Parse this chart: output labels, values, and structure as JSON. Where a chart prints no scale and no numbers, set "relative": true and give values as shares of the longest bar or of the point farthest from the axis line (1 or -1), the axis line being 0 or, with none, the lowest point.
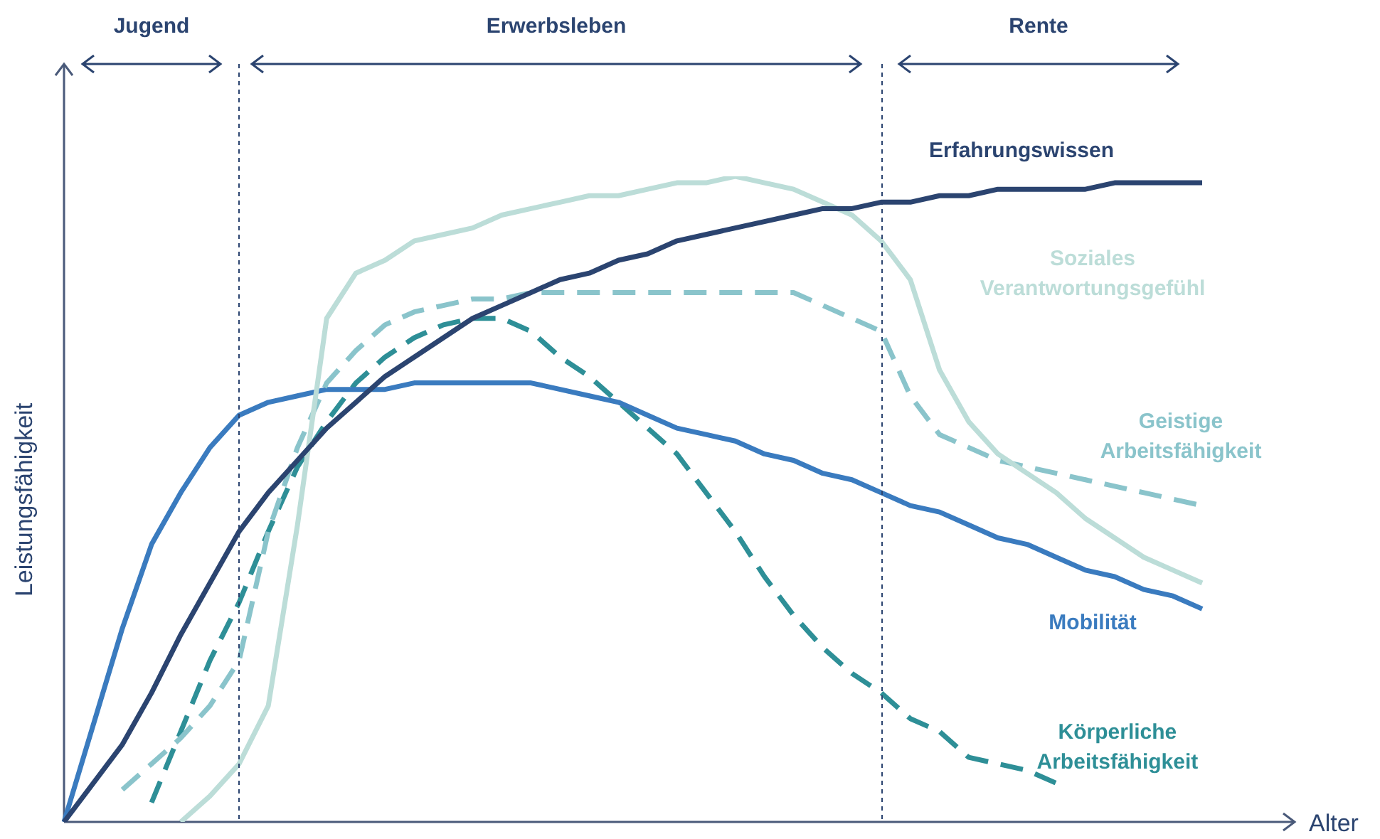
{
  "chart_data": {
    "type": "line",
    "relative": true,
    "xlabel": "Alter",
    "ylabel": "Leistungsfähigkeit",
    "categories": [
      null,
      null,
      null,
      null,
      null,
      null,
      null,
      null,
      null,
      null,
      null,
      null,
      null,
      null,
      null,
      null,
      null,
      null,
      null,
      null,
      null,
      null,
      null,
      null,
      null,
      null,
      null,
      null,
      null,
      null,
      null,
      null,
      null,
      null,
      null,
      null,
      null,
      null,
      null,
      null
    ],
    "tick_labels": false,
    "grid": false,
    "legend": false,
    "marker": "none",
    "annotations": [
      "Jugend",
      "Erwerbsleben",
      "Rente"
    ],
    "series": [
      {
        "name": "Erfahrungswissen",
        "color": "#2b4470",
        "line_style": "solid",
        "values": [
          0,
          0.06,
          0.12,
          0.2,
          0.29,
          0.37,
          0.45,
          0.51,
          0.56,
          0.61,
          0.65,
          0.69,
          0.72,
          0.75,
          0.78,
          0.8,
          0.82,
          0.84,
          0.85,
          0.87,
          0.88,
          0.9,
          0.91,
          0.92,
          0.93,
          0.94,
          0.95,
          0.95,
          0.96,
          0.96,
          0.97,
          0.97,
          0.98,
          0.98,
          0.98,
          0.98,
          0.99,
          0.99,
          0.99,
          0.99
        ]
      },
      {
        "name": "Soziales Verantwortungsgefühl",
        "color": "#bcddd8",
        "line_style": "solid",
        "values": [
          null,
          null,
          null,
          null,
          0,
          0.04,
          0.09,
          0.18,
          0.46,
          0.78,
          0.85,
          0.87,
          0.9,
          0.91,
          0.92,
          0.94,
          0.95,
          0.96,
          0.97,
          0.97,
          0.98,
          0.99,
          0.99,
          1.0,
          0.99,
          0.98,
          0.96,
          0.94,
          0.9,
          0.84,
          0.7,
          0.62,
          0.57,
          0.54,
          0.51,
          0.47,
          0.44,
          0.41,
          0.39,
          0.37
        ]
      },
      {
        "name": "Geistige Arbeitsfähigkeit",
        "color": "#8ac4cb",
        "line_style": "dashed",
        "values": [
          null,
          null,
          0.05,
          0.09,
          0.13,
          0.18,
          0.25,
          0.45,
          0.58,
          0.68,
          0.73,
          0.77,
          0.79,
          0.8,
          0.81,
          0.81,
          0.82,
          0.82,
          0.82,
          0.82,
          0.82,
          0.82,
          0.82,
          0.82,
          0.82,
          0.82,
          0.8,
          0.78,
          0.76,
          0.66,
          0.6,
          0.58,
          0.56,
          0.55,
          0.54,
          0.53,
          0.52,
          0.51,
          0.5,
          0.49
        ]
      },
      {
        "name": "Mobilität",
        "color": "#3a7bbf",
        "line_style": "solid",
        "values": [
          0,
          0.15,
          0.3,
          0.43,
          0.51,
          0.58,
          0.63,
          0.65,
          0.66,
          0.67,
          0.67,
          0.67,
          0.68,
          0.68,
          0.68,
          0.68,
          0.68,
          0.67,
          0.66,
          0.65,
          0.63,
          0.61,
          0.6,
          0.59,
          0.57,
          0.56,
          0.54,
          0.53,
          0.51,
          0.49,
          0.48,
          0.46,
          0.44,
          0.43,
          0.41,
          0.39,
          0.38,
          0.36,
          0.35,
          0.33
        ]
      },
      {
        "name": "Körperliche Arbeitsfähigkeit",
        "color": "#2e8f97",
        "line_style": "dashed",
        "values": [
          null,
          null,
          null,
          0.03,
          0.14,
          0.25,
          0.34,
          0.45,
          0.55,
          0.62,
          0.68,
          0.72,
          0.75,
          0.77,
          0.78,
          0.78,
          0.76,
          0.72,
          0.69,
          0.65,
          0.61,
          0.57,
          0.51,
          0.45,
          0.38,
          0.32,
          0.27,
          0.23,
          0.2,
          0.16,
          0.14,
          0.1,
          0.09,
          0.08,
          0.06,
          null,
          null,
          null,
          null,
          null
        ]
      }
    ]
  }
}
